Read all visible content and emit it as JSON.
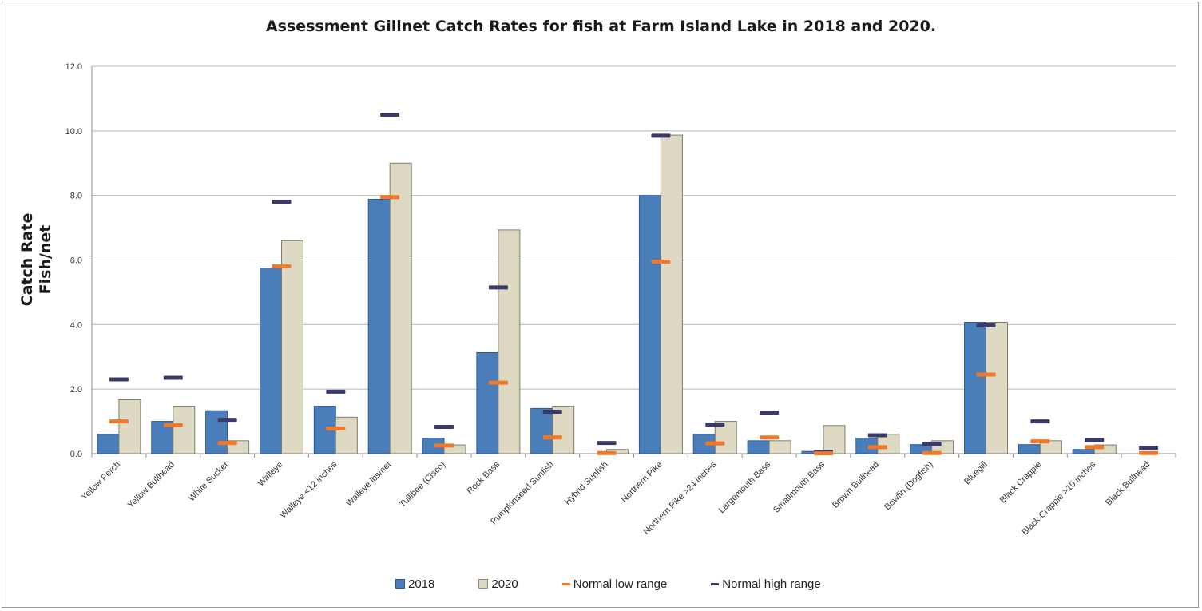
{
  "chart_data": {
    "type": "bar",
    "title": "Assessment Gillnet Catch Rates for fish at Farm Island Lake in 2018 and 2020.",
    "ylabel_lines": [
      "Catch Rate",
      "Fish/net"
    ],
    "xlabel": "",
    "ylim": [
      0,
      12
    ],
    "yticks": [
      "0.0",
      "2.0",
      "4.0",
      "6.0",
      "8.0",
      "10.0",
      "12.0"
    ],
    "grid": true,
    "legend_position": "bottom",
    "categories": [
      "Yellow Perch",
      "Yellow Bullhead",
      "White Sucker",
      "Walleye",
      "Walleye <12 inches",
      "Walleye lbs/net",
      "Tullibee (Cisco)",
      "Rock Bass",
      "Pumpkinseed Sunfish",
      "Hybrid Sunfish",
      "Northern Pike",
      "Northern Pike >24 inches",
      "Largemouth Bass",
      "Smallmouth Bass",
      "Brown Bullhead",
      "Bowfin (Dogfish)",
      "Bluegill",
      "Black Crappie",
      "Black Crappie >10 inches",
      "Black Bullhead"
    ],
    "series": [
      {
        "name": "2018",
        "kind": "bar",
        "color": "#4a7ebb",
        "values": [
          0.6,
          1.0,
          1.33,
          5.75,
          1.47,
          7.88,
          0.48,
          3.13,
          1.4,
          0.0,
          8.0,
          0.6,
          0.4,
          0.07,
          0.48,
          0.28,
          4.07,
          0.28,
          0.13,
          0.0
        ]
      },
      {
        "name": "2020",
        "kind": "bar",
        "color": "#ddd9c3",
        "values": [
          1.67,
          1.47,
          0.4,
          6.6,
          1.13,
          9.0,
          0.27,
          6.93,
          1.47,
          0.13,
          9.87,
          1.0,
          0.4,
          0.87,
          0.6,
          0.4,
          4.07,
          0.4,
          0.27,
          0.0
        ]
      },
      {
        "name": "Normal low range",
        "kind": "marker",
        "color": "#f07828",
        "values": [
          1.0,
          0.88,
          0.33,
          5.8,
          0.78,
          7.95,
          0.25,
          2.2,
          0.5,
          0.02,
          5.95,
          0.32,
          0.5,
          0.01,
          0.2,
          0.02,
          2.45,
          0.38,
          0.2,
          0.02
        ]
      },
      {
        "name": "Normal high range",
        "kind": "marker",
        "color": "#3a3a6a",
        "values": [
          2.3,
          2.35,
          1.05,
          7.8,
          1.92,
          10.5,
          0.83,
          5.15,
          1.3,
          0.33,
          9.85,
          0.9,
          1.27,
          0.06,
          0.57,
          0.3,
          3.97,
          1.0,
          0.42,
          0.18
        ]
      }
    ]
  }
}
